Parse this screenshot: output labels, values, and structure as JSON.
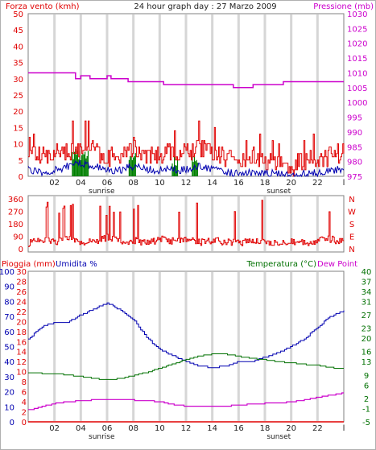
{
  "title": "24 hour graph day : 27 Marzo 2009",
  "x_tick_labels": [
    "02",
    "04",
    "06",
    "08",
    "10",
    "12",
    "14",
    "16",
    "18",
    "20",
    "22"
  ],
  "sunrise_label": "sunrise",
  "sunset_label": "sunset",
  "end_marker_label": "l",
  "colors": {
    "wind": "#e00000",
    "wind_avg": "#0000b0",
    "wind_green": "#008000",
    "pressure": "#cc00cc",
    "humidity": "#0000b0",
    "temperature": "#007000",
    "dew_point": "#cc00cc",
    "rain": "#e00000",
    "grid": "#d6d6d6"
  },
  "chart_data": [
    {
      "id": "wind-pressure",
      "type": "line",
      "title": "24 hour graph day : 27 Marzo 2009",
      "left_axis": {
        "label": "Forza vento (kmh)",
        "ylim": [
          0,
          50
        ],
        "ticks": [
          0,
          5,
          10,
          15,
          20,
          25,
          30,
          35,
          40,
          45,
          50
        ]
      },
      "right_axis": {
        "label": "Pressione (mb)",
        "ylim": [
          975,
          1030
        ],
        "ticks": [
          975,
          980,
          985,
          990,
          995,
          1000,
          1005,
          1010,
          1015,
          1020,
          1025,
          1030
        ]
      },
      "series": [
        {
          "name": "Pressione",
          "axis": "right",
          "x": [
            0,
            3.5,
            3.6,
            3.9,
            4.0,
            4.6,
            4.7,
            5.9,
            6.0,
            6.2,
            6.3,
            7.5,
            7.6,
            10.2,
            10.3,
            12.2,
            12.3,
            15.5,
            15.6,
            17.0,
            17.1,
            18.0,
            18.1,
            19.3,
            19.4,
            24
          ],
          "y": [
            1010,
            1010,
            1008,
            1008,
            1009,
            1009,
            1008,
            1008,
            1009,
            1009,
            1008,
            1008,
            1007,
            1007,
            1006,
            1006,
            1006,
            1006,
            1005,
            1005,
            1006,
            1006,
            1006,
            1006,
            1007,
            1007
          ]
        },
        {
          "name": "Vento max",
          "axis": "left",
          "x": [
            0,
            1,
            2,
            3,
            4,
            5,
            6,
            7,
            8,
            9,
            10,
            11,
            12,
            13,
            14,
            15,
            16,
            17,
            18,
            19,
            20,
            21,
            22,
            23,
            24
          ],
          "y": [
            8,
            6,
            7,
            8,
            9,
            8,
            6,
            7,
            9,
            7,
            6,
            8,
            7,
            9,
            7,
            6,
            5,
            6,
            5,
            4,
            3,
            5,
            5,
            6,
            8
          ]
        },
        {
          "name": "Vento medio",
          "axis": "left",
          "x": [
            0,
            1,
            2,
            3,
            4,
            5,
            6,
            7,
            8,
            9,
            10,
            11,
            12,
            13,
            14,
            15,
            16,
            17,
            18,
            19,
            20,
            21,
            22,
            23,
            24
          ],
          "y": [
            2,
            1,
            2,
            3,
            4,
            3,
            2,
            2,
            3,
            2,
            2,
            2,
            2,
            3,
            2,
            1,
            1,
            1,
            1,
            1,
            0,
            1,
            1,
            2,
            2
          ]
        }
      ]
    },
    {
      "id": "wind-direction",
      "type": "line",
      "left_axis": {
        "ylim": [
          0,
          360
        ],
        "ticks": [
          0,
          90,
          180,
          270,
          360
        ]
      },
      "right_labels": [
        "N",
        "W",
        "S",
        "E",
        "N"
      ],
      "series": [
        {
          "name": "Direzione vento",
          "x": [
            0,
            1,
            2,
            3,
            4,
            5,
            6,
            7,
            8,
            9,
            10,
            11,
            12,
            13,
            14,
            15,
            16,
            17,
            18,
            19,
            20,
            21,
            22,
            23,
            24
          ],
          "y": [
            40,
            60,
            50,
            70,
            45,
            55,
            80,
            50,
            60,
            40,
            70,
            55,
            65,
            45,
            60,
            50,
            40,
            60,
            45,
            50,
            55,
            40,
            60,
            70,
            45
          ]
        }
      ]
    },
    {
      "id": "temp-humidity",
      "type": "line",
      "left_axis_rain": {
        "label": "Pioggia (mm)",
        "ylim": [
          0,
          30
        ],
        "ticks": [
          0,
          2,
          4,
          6,
          8,
          10,
          12,
          14,
          16,
          18,
          20,
          22,
          24,
          26,
          28,
          30
        ]
      },
      "left_axis_humidity": {
        "label": "Umidita %",
        "ylim": [
          0,
          100
        ],
        "ticks": [
          0,
          10,
          20,
          30,
          40,
          50,
          60,
          70,
          80,
          90,
          100
        ]
      },
      "right_axis": {
        "label": "Temperatura (°C)",
        "label2": "Dew Point",
        "ylim": [
          -5,
          40
        ],
        "ticks": [
          -5,
          -1,
          2,
          6,
          9,
          13,
          16,
          20,
          23,
          27,
          31,
          34,
          37,
          40
        ]
      },
      "series": [
        {
          "name": "Umidita",
          "axis": "humidity",
          "x": [
            0,
            1,
            2,
            3,
            4,
            5,
            6,
            7,
            8,
            9,
            10,
            11,
            12,
            13,
            14,
            15,
            16,
            17,
            18,
            19,
            20,
            21,
            22,
            23,
            24
          ],
          "y": [
            55,
            63,
            66,
            66,
            71,
            75,
            79,
            74,
            68,
            56,
            48,
            44,
            40,
            37,
            36,
            37,
            40,
            40,
            43,
            46,
            50,
            55,
            63,
            70,
            74
          ]
        },
        {
          "name": "Temperatura",
          "axis": "right",
          "x": [
            0,
            1,
            2,
            3,
            4,
            5,
            6,
            7,
            8,
            9,
            10,
            11,
            12,
            13,
            14,
            15,
            16,
            17,
            18,
            19,
            20,
            21,
            22,
            23,
            24
          ],
          "y": [
            9.5,
            9.5,
            9.4,
            9.0,
            8.6,
            8.0,
            7.5,
            8.0,
            8.8,
            9.8,
            11.0,
            12.3,
            13.6,
            14.6,
            15.3,
            15.2,
            14.6,
            14.0,
            13.5,
            13.0,
            12.6,
            12.2,
            11.9,
            11.2,
            11.0
          ]
        },
        {
          "name": "Dew Point",
          "axis": "right",
          "x": [
            0,
            1,
            2,
            3,
            4,
            5,
            6,
            7,
            8,
            9,
            10,
            11,
            12,
            13,
            14,
            15,
            16,
            17,
            18,
            19,
            20,
            21,
            22,
            23,
            24
          ],
          "y": [
            -1.5,
            -0.5,
            0.5,
            1.0,
            1.3,
            1.6,
            1.8,
            1.5,
            1.5,
            1.4,
            1.0,
            0.2,
            -0.3,
            -0.5,
            -0.5,
            -0.3,
            0.0,
            0.3,
            0.5,
            0.6,
            1.0,
            1.5,
            2.3,
            3.0,
            3.6
          ]
        },
        {
          "name": "Pioggia",
          "axis": "rain",
          "x": [
            0,
            24
          ],
          "y": [
            0,
            0
          ]
        }
      ]
    }
  ]
}
